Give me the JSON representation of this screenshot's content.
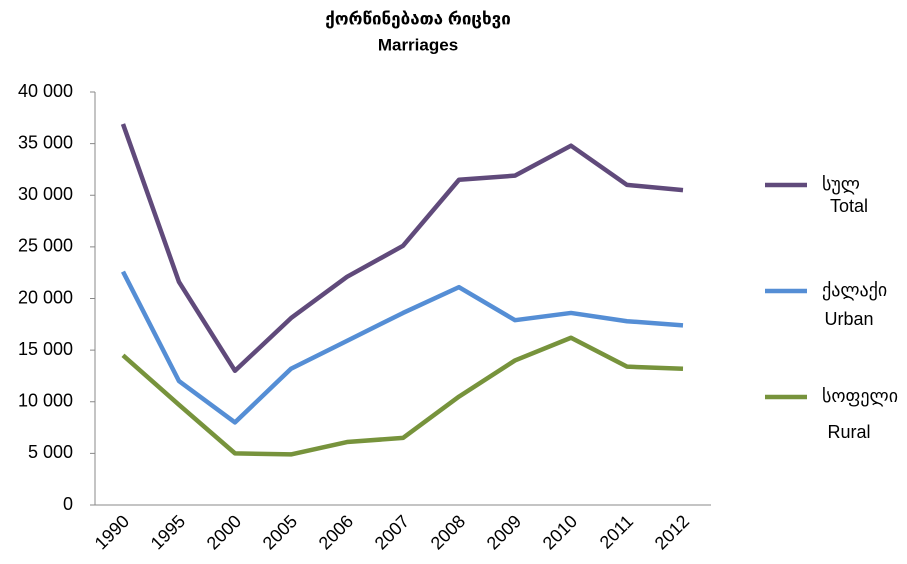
{
  "chart_data": {
    "type": "line",
    "title": "ქორწინებათა რიცხვი",
    "subtitle": "Marriages",
    "categories": [
      "1990",
      "1995",
      "2000",
      "2005",
      "2006",
      "2007",
      "2008",
      "2009",
      "2010",
      "2011",
      "2012"
    ],
    "series": [
      {
        "name": "სულ",
        "name_en": "Total",
        "color": "#604a7b",
        "values": [
          36900,
          21600,
          13000,
          18100,
          22100,
          25100,
          31500,
          31900,
          34800,
          31000,
          30500
        ]
      },
      {
        "name": "ქალაქი",
        "name_en": "Urban",
        "color": "#558ed5",
        "values": [
          22600,
          12000,
          8000,
          13200,
          15900,
          18600,
          21100,
          17900,
          18600,
          17800,
          17400
        ]
      },
      {
        "name": "სოფელი",
        "name_en": "Rural",
        "color": "#77933c",
        "values": [
          14500,
          9700,
          5000,
          4900,
          6100,
          6500,
          10500,
          14000,
          16200,
          13400,
          13200
        ]
      }
    ],
    "ylim": [
      0,
      40000
    ],
    "yticks": [
      0,
      {
        "value": 5000,
        "label": "5 000"
      },
      {
        "value": 10000,
        "label": "10 000"
      },
      {
        "value": 15000,
        "label": "15 000"
      },
      {
        "value": 20000,
        "label": "20 000"
      },
      {
        "value": 25000,
        "label": "25 000"
      },
      {
        "value": 30000,
        "label": "30 000"
      },
      {
        "value": 35000,
        "label": "35 000"
      },
      {
        "value": 40000,
        "label": "40 000"
      }
    ],
    "grid": false,
    "legend": "right"
  }
}
